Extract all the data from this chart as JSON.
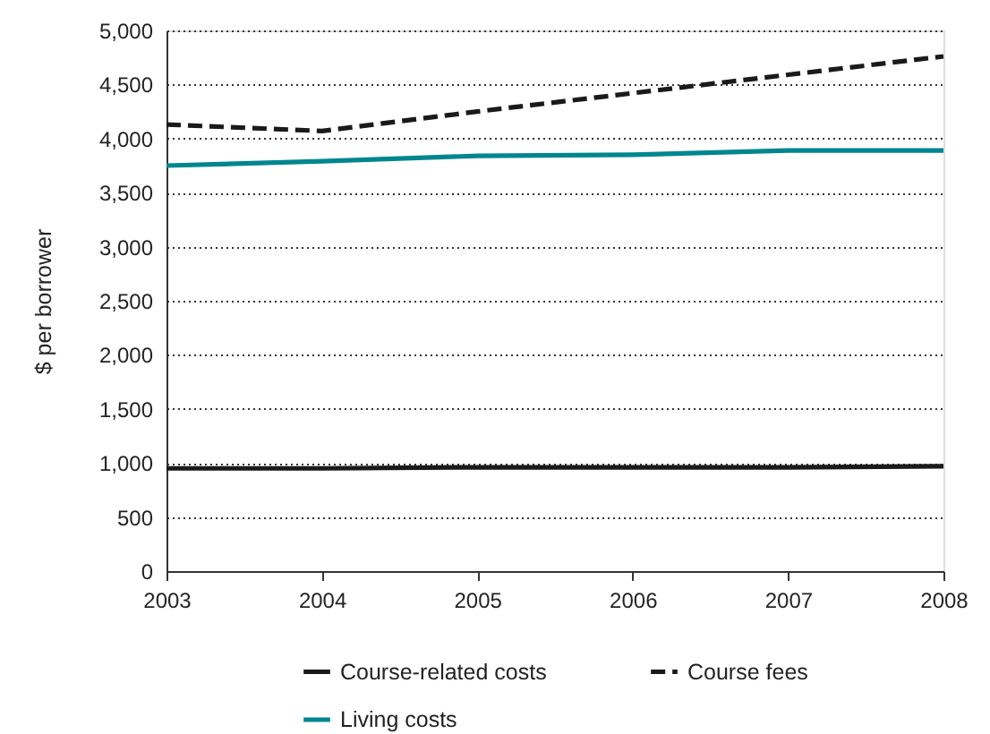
{
  "chart_data": {
    "type": "line",
    "ylabel": "$ per borrower",
    "x": [
      2003,
      2004,
      2005,
      2006,
      2007,
      2008
    ],
    "xlim": [
      2003,
      2008
    ],
    "xticks": [
      2003,
      2004,
      2005,
      2006,
      2007,
      2008
    ],
    "ylim": [
      0,
      5000
    ],
    "yticks": [
      0,
      500,
      {
        "value": 1000,
        "label": "1,000"
      },
      {
        "value": 1500,
        "label": "1,500"
      },
      {
        "value": 2000,
        "label": "2,000"
      },
      {
        "value": 2500,
        "label": "2,500"
      },
      {
        "value": 3000,
        "label": "3,000"
      },
      {
        "value": 3500,
        "label": "3,500"
      },
      {
        "value": 4000,
        "label": "4,000"
      },
      {
        "value": 4500,
        "label": "4,500"
      },
      {
        "value": 5000,
        "label": "5,000"
      }
    ],
    "grid": "y",
    "legend": "bottom",
    "marker": "none",
    "series": [
      {
        "name": "Course-related costs",
        "color": "#1a1a1a",
        "line_style": "solid",
        "values": [
          950,
          950,
          960,
          960,
          960,
          970
        ]
      },
      {
        "name": "Course fees",
        "color": "#1a1a1a",
        "line_style": "dashed",
        "values": [
          4130,
          4070,
          4250,
          4420,
          4590,
          4760
        ]
      },
      {
        "name": "Living costs",
        "color": "#00868f",
        "line_style": "solid",
        "values": [
          3750,
          3790,
          3840,
          3850,
          3890,
          3890
        ]
      }
    ]
  }
}
